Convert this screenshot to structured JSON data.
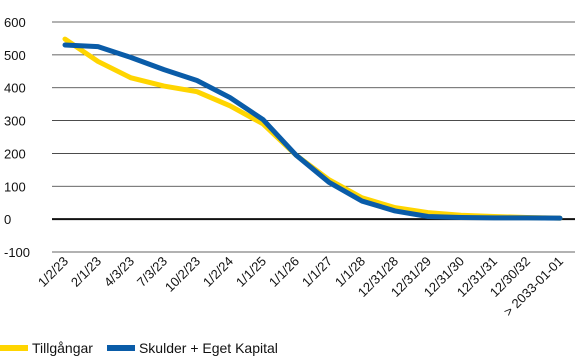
{
  "chart_data": {
    "type": "line",
    "categories": [
      "1/2/23",
      "2/1/23",
      "4/3/23",
      "7/3/23",
      "10/2/23",
      "1/2/24",
      "1/1/25",
      "1/1/26",
      "1/1/27",
      "1/1/28",
      "12/31/28",
      "12/31/29",
      "12/31/30",
      "12/31/31",
      "12/30/32",
      "> 2033-01-01"
    ],
    "series": [
      {
        "name": "Tillgångar",
        "color": "#FFD500",
        "values": [
          548,
          480,
          430,
          405,
          388,
          345,
          290,
          195,
          120,
          65,
          35,
          20,
          12,
          8,
          5,
          3
        ]
      },
      {
        "name": "Skulder + Eget Kapital",
        "color": "#0A5CA8",
        "values": [
          530,
          525,
          492,
          455,
          422,
          370,
          303,
          195,
          112,
          55,
          25,
          8,
          5,
          4,
          4,
          3
        ]
      }
    ],
    "yticks": [
      600,
      500,
      400,
      300,
      200,
      100,
      0,
      -100
    ],
    "ylim": [
      -100,
      600
    ],
    "zero_line": true,
    "grid": "horizontal",
    "legend": "bottom-left"
  }
}
